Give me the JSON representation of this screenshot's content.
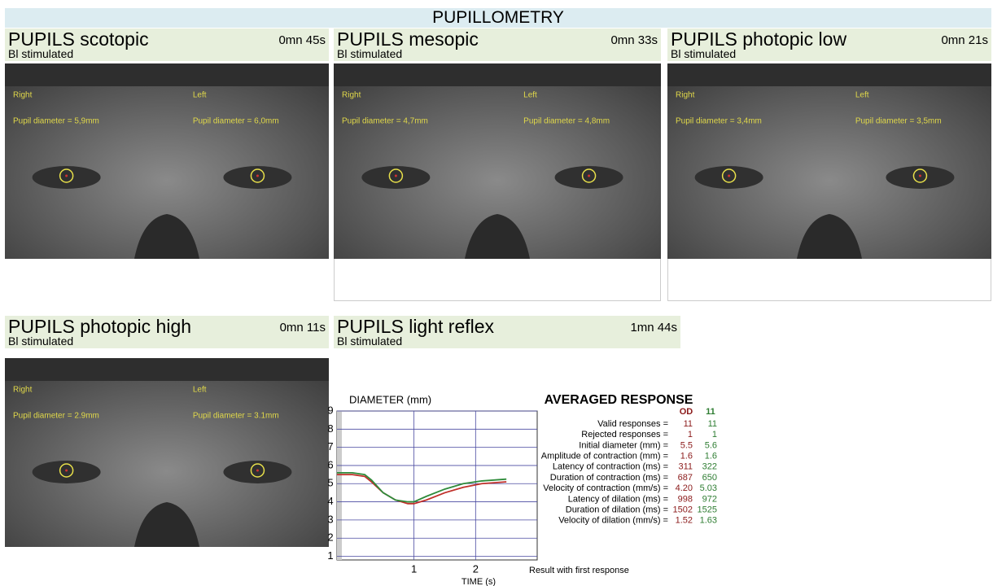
{
  "header": {
    "title": "PUPILLOMETRY"
  },
  "panels": [
    {
      "title": "PUPILS scotopic",
      "time": "0mn 45s",
      "subtitle": "Bl stimulated",
      "right": "Right",
      "left": "Left",
      "right_diameter": "Pupil diameter = 5,9mm",
      "left_diameter": "Pupil diameter = 6,0mm"
    },
    {
      "title": "PUPILS mesopic",
      "time": "0mn 33s",
      "subtitle": "Bl stimulated",
      "right": "Right",
      "left": "Left",
      "right_diameter": "Pupil diameter = 4,7mm",
      "left_diameter": "Pupil diameter = 4,8mm"
    },
    {
      "title": "PUPILS photopic low",
      "time": "0mn 21s",
      "subtitle": "Bl stimulated",
      "right": "Right",
      "left": "Left",
      "right_diameter": "Pupil diameter = 3,4mm",
      "left_diameter": "Pupil diameter = 3,5mm"
    },
    {
      "title": "PUPILS photopic high",
      "time": "0mn 11s",
      "subtitle": "Bl stimulated",
      "right": "Right",
      "left": "Left",
      "right_diameter": "Pupil diameter = 2.9mm",
      "left_diameter": "Pupil diameter = 3.1mm"
    },
    {
      "title": "PUPILS light reflex",
      "time": "1mn 44s",
      "subtitle": "Bl stimulated"
    }
  ],
  "chart_data": {
    "type": "line",
    "y_label": "DIAMETER (mm)",
    "x_label": "TIME (s)",
    "x": [
      -0.25,
      0,
      0.2,
      0.31,
      0.5,
      0.7,
      0.9,
      1.0,
      1.2,
      1.5,
      1.8,
      2.1,
      2.5
    ],
    "series": [
      {
        "color": "#c0302a",
        "values": [
          5.5,
          5.5,
          5.4,
          5.1,
          4.5,
          4.1,
          3.9,
          3.9,
          4.1,
          4.5,
          4.8,
          5.0,
          5.1
        ]
      },
      {
        "color": "#2e8b3a",
        "values": [
          5.6,
          5.6,
          5.5,
          5.2,
          4.5,
          4.1,
          4.0,
          4.0,
          4.3,
          4.7,
          5.0,
          5.15,
          5.25
        ]
      }
    ],
    "xlim": [
      -0.25,
      3
    ],
    "ylim": [
      0.8,
      9
    ],
    "xticks": [
      1,
      2
    ],
    "yticks": [
      1,
      2,
      3,
      4,
      5,
      6,
      7,
      8,
      9
    ],
    "grid": true
  },
  "response": {
    "title": "AVERAGED RESPONSE",
    "columns": [
      "OD",
      "11"
    ],
    "rows": [
      [
        "Valid responses =",
        "11",
        "11"
      ],
      [
        "Rejected responses =",
        "1",
        "1"
      ],
      [
        "Initial diameter (mm) =",
        "5.5",
        "5.6"
      ],
      [
        "Amplitude of contraction (mm) =",
        "1.6",
        "1.6"
      ],
      [
        "Latency of contraction (ms) =",
        "311",
        "322"
      ],
      [
        "Duration of contraction (ms) =",
        "687",
        "650"
      ],
      [
        "Velocity of contraction (mm/s) =",
        "4.20",
        "5.03"
      ],
      [
        "Latency of dilation (ms) =",
        "998",
        "972"
      ],
      [
        "Duration of dilation (ms) =",
        "1502",
        "1525"
      ],
      [
        "Velocity of dilation (mm/s) =",
        "1.52",
        "1.63"
      ]
    ],
    "note": "Result with first response"
  }
}
